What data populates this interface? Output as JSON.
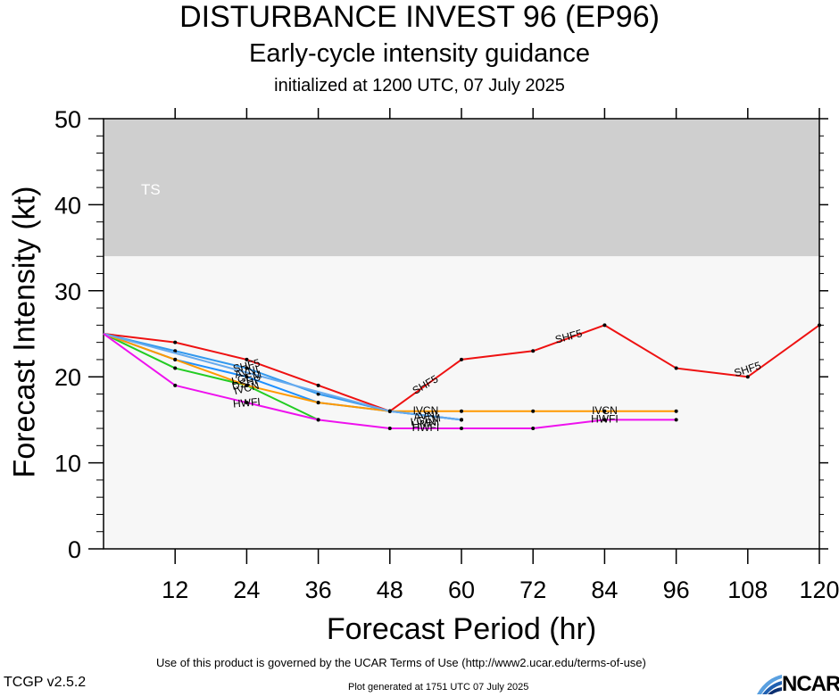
{
  "chart_data": {
    "type": "line",
    "title": "DISTURBANCE INVEST 96 (EP96)",
    "subtitle": "Early-cycle intensity guidance",
    "initialized": "initialized at 1200 UTC, 07 July 2025",
    "xlabel": "Forecast Period (hr)",
    "ylabel": "Forecast Intensity (kt)",
    "xlim": [
      0,
      120
    ],
    "ylim": [
      0,
      50
    ],
    "xticks": [
      "12",
      "24",
      "36",
      "48",
      "60",
      "72",
      "84",
      "96",
      "108",
      "120"
    ],
    "yticks": [
      "0",
      "10",
      "20",
      "30",
      "40",
      "50"
    ],
    "grid": false,
    "bands": [
      {
        "label": "TS",
        "from": 34,
        "to": 50,
        "color": "#cfcfcf"
      },
      {
        "label": "",
        "from": 0,
        "to": 34,
        "color": "#f7f7f7"
      }
    ],
    "series": [
      {
        "name": "SHF5",
        "color": "#ee1111",
        "points": [
          [
            0,
            25
          ],
          [
            12,
            24
          ],
          [
            24,
            22
          ],
          [
            36,
            19
          ],
          [
            48,
            16
          ],
          [
            60,
            22
          ],
          [
            72,
            23
          ],
          [
            84,
            26
          ],
          [
            96,
            21
          ],
          [
            108,
            20
          ],
          [
            120,
            26
          ]
        ]
      },
      {
        "name": "AVNI",
        "color": "#3399ee",
        "points": [
          [
            0,
            25
          ],
          [
            12,
            23
          ],
          [
            24,
            21
          ],
          [
            36,
            18
          ],
          [
            48,
            16
          ],
          [
            60,
            15
          ]
        ]
      },
      {
        "name": "LGEM",
        "color": "#1e90ff",
        "points": [
          [
            0,
            25
          ],
          [
            12,
            22
          ],
          [
            24,
            20
          ],
          [
            36,
            17
          ],
          [
            48,
            16
          ],
          [
            60,
            15
          ]
        ]
      },
      {
        "name": "DSHP",
        "color": "#22cc22",
        "points": [
          [
            0,
            25
          ],
          [
            12,
            21
          ],
          [
            24,
            19
          ],
          [
            36,
            15
          ]
        ]
      },
      {
        "name": "IVCN",
        "color": "#ff9900",
        "points": [
          [
            0,
            25
          ],
          [
            12,
            22
          ],
          [
            24,
            19
          ],
          [
            36,
            17
          ],
          [
            48,
            16
          ],
          [
            60,
            16
          ],
          [
            72,
            16
          ],
          [
            84,
            16
          ],
          [
            96,
            16
          ]
        ]
      },
      {
        "name": "HMNI",
        "color": "#66aaee",
        "points": [
          [
            0,
            25
          ],
          [
            48,
            16
          ],
          [
            60,
            15
          ]
        ]
      },
      {
        "name": "HWFI",
        "color": "#ee11ee",
        "points": [
          [
            0,
            25
          ],
          [
            12,
            19
          ],
          [
            24,
            17
          ],
          [
            36,
            15
          ],
          [
            48,
            14
          ],
          [
            60,
            14
          ],
          [
            72,
            14
          ],
          [
            84,
            15
          ],
          [
            96,
            15
          ]
        ]
      }
    ],
    "labels": [
      {
        "text": "SHF5",
        "x": 24,
        "y": 21.2,
        "angle": -14,
        "color": "#000000"
      },
      {
        "text": "AVNI",
        "x": 24,
        "y": 20.5,
        "angle": -14,
        "color": "#000000"
      },
      {
        "text": "LGEM",
        "x": 24,
        "y": 19.8,
        "angle": -14,
        "color": "#000000"
      },
      {
        "text": "DSHP",
        "x": 24,
        "y": 19.2,
        "angle": -14,
        "color": "#000000"
      },
      {
        "text": "IVCN",
        "x": 24,
        "y": 18.6,
        "angle": -14,
        "color": "#000000"
      },
      {
        "text": "HWFI",
        "x": 24,
        "y": 16.9,
        "angle": -5,
        "color": "#000000"
      },
      {
        "text": "SHF5",
        "x": 54,
        "y": 19.0,
        "angle": -30,
        "color": "#000000"
      },
      {
        "text": "IVCN",
        "x": 54,
        "y": 16.0,
        "angle": 0,
        "color": "#000000"
      },
      {
        "text": "AVNI",
        "x": 54,
        "y": 15.4,
        "angle": -8,
        "color": "#000000"
      },
      {
        "text": "LGEM",
        "x": 54,
        "y": 14.9,
        "angle": -8,
        "color": "#000000"
      },
      {
        "text": "HMNI",
        "x": 54,
        "y": 14.5,
        "angle": -8,
        "color": "#000000"
      },
      {
        "text": "HWFI",
        "x": 54,
        "y": 14.0,
        "angle": 0,
        "color": "#000000"
      },
      {
        "text": "SHF5",
        "x": 78,
        "y": 24.6,
        "angle": -15,
        "color": "#000000"
      },
      {
        "text": "IVCN",
        "x": 84,
        "y": 16.0,
        "angle": 0,
        "color": "#000000"
      },
      {
        "text": "HWFI",
        "x": 84,
        "y": 15.0,
        "angle": 0,
        "color": "#000000"
      },
      {
        "text": "SHF5",
        "x": 108,
        "y": 20.8,
        "angle": -18,
        "color": "#000000"
      }
    ]
  },
  "footer": {
    "terms": "Use of this product is governed by the UCAR Terms of Use (http://www2.ucar.edu/terms-of-use)",
    "version": "TCGP v2.5.2",
    "generated": "Plot generated at 1751 UTC   07 July 2025",
    "logo": "NCAR"
  }
}
